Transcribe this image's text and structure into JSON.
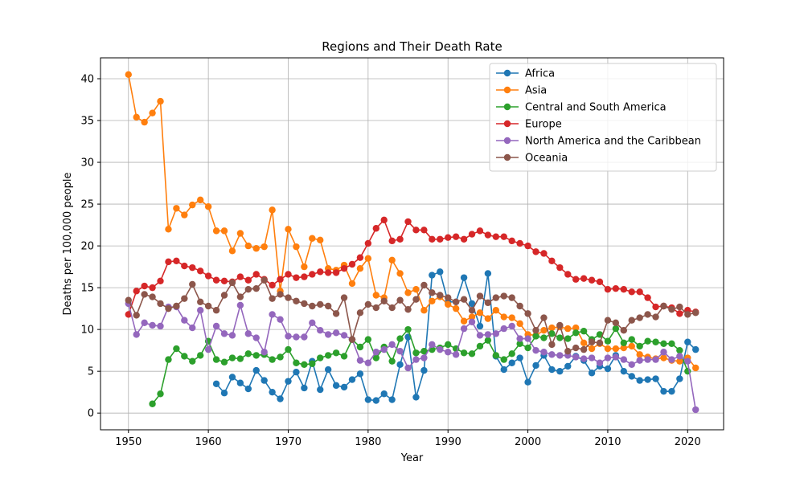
{
  "chart_data": {
    "type": "line",
    "title": "Regions and Their Death Rate",
    "xlabel": "Year",
    "ylabel": "Deaths per 100,000 people",
    "xlim": [
      1946.5,
      2024.5
    ],
    "ylim": [
      -2.0,
      42.5
    ],
    "xticks": [
      1950,
      1960,
      1970,
      1980,
      1990,
      2000,
      2010,
      2020
    ],
    "yticks": [
      0,
      5,
      10,
      15,
      20,
      25,
      30,
      35,
      40
    ],
    "grid": true,
    "legend_position": "top-right",
    "series": [
      {
        "name": "Africa",
        "color": "#1f77b4",
        "start_year": 1961,
        "values": [
          3.5,
          2.4,
          4.3,
          3.6,
          2.9,
          5.1,
          3.9,
          2.5,
          1.7,
          3.8,
          4.9,
          3.0,
          6.2,
          2.8,
          5.2,
          3.3,
          3.1,
          4.0,
          4.7,
          1.6,
          1.5,
          2.3,
          1.6,
          5.8,
          9.1,
          1.9,
          5.1,
          16.5,
          16.9,
          13.3,
          13.3,
          16.2,
          13.1,
          10.4,
          16.7,
          6.8,
          5.2,
          6.0,
          6.6,
          3.7,
          5.7,
          6.9,
          5.2,
          5.0,
          5.6,
          6.8,
          6.3,
          4.8,
          5.6,
          5.3,
          6.9,
          5.0,
          4.4,
          3.9,
          4.0,
          4.1,
          2.6,
          2.6,
          4.1,
          8.5,
          7.6
        ]
      },
      {
        "name": "Asia",
        "color": "#ff7f0e",
        "start_year": 1950,
        "values": [
          40.5,
          35.4,
          34.8,
          35.9,
          37.3,
          22.0,
          24.5,
          23.7,
          24.9,
          25.5,
          24.7,
          21.8,
          21.8,
          19.4,
          21.5,
          20.0,
          19.7,
          19.9,
          24.3,
          14.6,
          22.0,
          19.9,
          17.5,
          20.9,
          20.7,
          17.3,
          17.1,
          17.7,
          15.5,
          17.3,
          18.5,
          14.1,
          13.8,
          18.3,
          16.7,
          14.4,
          14.8,
          12.3,
          13.4,
          13.9,
          13.0,
          12.5,
          11.0,
          11.5,
          12.0,
          11.3,
          12.3,
          11.5,
          11.4,
          10.7,
          9.4,
          9.3,
          9.9,
          10.2,
          10.3,
          10.1,
          10.2,
          8.4,
          7.7,
          8.3,
          7.7,
          7.7,
          7.8,
          8.0,
          7.0,
          6.7,
          6.5,
          6.6,
          6.3,
          6.2,
          6.6,
          5.4
        ]
      },
      {
        "name": "Central and South America",
        "color": "#2ca02c",
        "start_year": 1953,
        "values": [
          1.1,
          2.3,
          6.4,
          7.7,
          6.8,
          6.2,
          6.9,
          8.6,
          6.4,
          6.1,
          6.6,
          6.5,
          7.1,
          6.9,
          7.0,
          6.4,
          6.7,
          7.6,
          6.0,
          5.8,
          5.9,
          6.6,
          6.9,
          7.2,
          6.8,
          8.8,
          7.9,
          8.8,
          6.6,
          7.9,
          6.2,
          8.9,
          10.0,
          7.2,
          7.4,
          7.6,
          7.8,
          8.2,
          7.7,
          7.2,
          7.1,
          8.0,
          8.7,
          6.9,
          6.4,
          7.1,
          8.3,
          7.8,
          9.2,
          9.0,
          9.5,
          9.0,
          8.9,
          9.6,
          9.8,
          8.8,
          9.4,
          8.6,
          10.1,
          8.4,
          8.8,
          8.0,
          8.6,
          8.5,
          8.3,
          8.3,
          7.5,
          5.0
        ]
      },
      {
        "name": "Europe",
        "color": "#d62728",
        "start_year": 1950,
        "values": [
          11.8,
          14.6,
          15.2,
          15.0,
          15.8,
          18.1,
          18.2,
          17.6,
          17.4,
          17.0,
          16.4,
          15.9,
          15.8,
          15.7,
          16.3,
          15.9,
          16.6,
          16.0,
          15.3,
          16.0,
          16.6,
          16.2,
          16.3,
          16.6,
          16.9,
          16.8,
          16.8,
          17.3,
          17.8,
          18.6,
          20.3,
          22.1,
          23.1,
          20.6,
          20.8,
          22.9,
          21.9,
          21.9,
          20.8,
          20.8,
          21.0,
          21.1,
          20.8,
          21.4,
          21.8,
          21.3,
          21.1,
          21.1,
          20.6,
          20.3,
          20.0,
          19.3,
          19.1,
          18.2,
          17.4,
          16.6,
          16.0,
          16.1,
          15.9,
          15.7,
          14.8,
          14.9,
          14.8,
          14.5,
          14.5,
          13.8,
          12.7,
          12.8,
          12.6,
          11.9,
          12.3,
          12.1
        ]
      },
      {
        "name": "North America and the Caribbean",
        "color": "#9467bd",
        "start_year": 1950,
        "values": [
          13.1,
          9.4,
          10.8,
          10.5,
          10.4,
          12.7,
          12.7,
          11.1,
          10.2,
          12.3,
          7.6,
          10.4,
          9.5,
          9.3,
          12.9,
          9.5,
          9.0,
          7.3,
          11.8,
          11.2,
          9.2,
          9.1,
          9.1,
          10.8,
          9.9,
          9.4,
          9.6,
          9.3,
          8.8,
          6.3,
          6.0,
          7.3,
          7.6,
          8.2,
          7.4,
          5.4,
          6.4,
          6.6,
          8.2,
          7.6,
          7.3,
          7.0,
          10.1,
          10.9,
          9.3,
          9.4,
          9.5,
          10.1,
          10.4,
          8.9,
          8.9,
          7.5,
          7.3,
          7.0,
          6.9,
          6.9,
          6.7,
          6.5,
          6.6,
          6.0,
          6.6,
          6.7,
          6.4,
          5.8,
          6.3,
          6.4,
          6.4,
          7.3,
          6.4,
          6.8,
          6.2,
          0.4
        ]
      },
      {
        "name": "Oceania",
        "color": "#8c564b",
        "start_year": 1950,
        "values": [
          13.5,
          11.7,
          14.2,
          13.9,
          13.1,
          12.5,
          12.8,
          13.7,
          15.4,
          13.3,
          12.8,
          12.3,
          14.1,
          15.6,
          13.9,
          14.8,
          14.9,
          15.9,
          13.7,
          14.2,
          13.8,
          13.4,
          13.1,
          12.8,
          13.0,
          12.8,
          11.9,
          13.8,
          8.8,
          12.0,
          13.0,
          12.6,
          13.4,
          12.6,
          13.5,
          12.4,
          13.6,
          15.3,
          14.4,
          14.1,
          13.8,
          13.3,
          13.6,
          12.3,
          14.0,
          13.2,
          13.8,
          14.0,
          13.8,
          12.8,
          11.9,
          9.9,
          11.4,
          8.2,
          10.5,
          7.4,
          7.8,
          7.6,
          8.5,
          8.4,
          11.1,
          10.8,
          9.9,
          11.1,
          11.4,
          11.8,
          11.5,
          12.8,
          12.4,
          12.7,
          11.8,
          12.0
        ]
      }
    ]
  }
}
